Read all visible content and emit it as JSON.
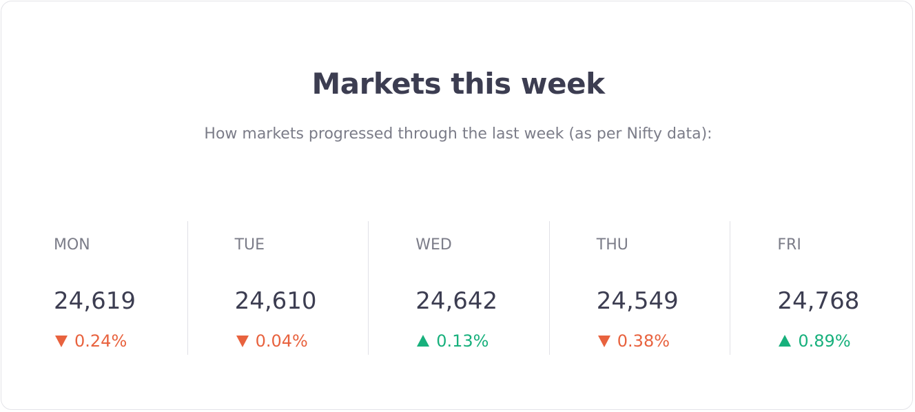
{
  "header": {
    "title": "Markets this week",
    "subtitle": "How markets progressed through the last week (as per Nifty data):"
  },
  "days": [
    {
      "label": "MON",
      "value": "24,619",
      "change": "0.24%",
      "direction": "down",
      "icon": "triangle-down-icon"
    },
    {
      "label": "TUE",
      "value": "24,610",
      "change": "0.04%",
      "direction": "down",
      "icon": "triangle-down-icon"
    },
    {
      "label": "WED",
      "value": "24,642",
      "change": "0.13%",
      "direction": "up",
      "icon": "triangle-up-icon"
    },
    {
      "label": "THU",
      "value": "24,549",
      "change": "0.38%",
      "direction": "down",
      "icon": "triangle-down-icon"
    },
    {
      "label": "FRI",
      "value": "24,768",
      "change": "0.89%",
      "direction": "up",
      "icon": "triangle-up-icon"
    }
  ],
  "colors": {
    "down": "#e8623e",
    "up": "#17b07c",
    "title": "#3c3d51",
    "muted": "#7b7c88"
  }
}
